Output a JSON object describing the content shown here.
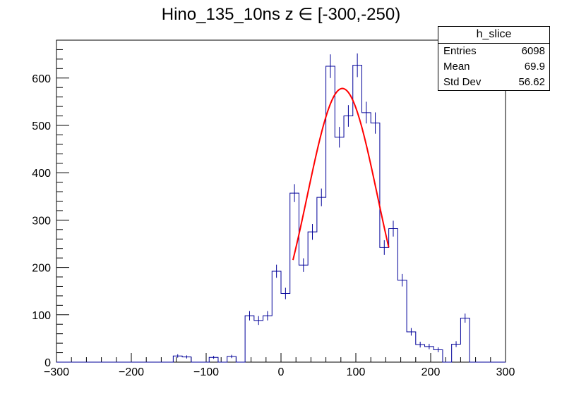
{
  "chart_data": {
    "type": "histogram",
    "title": "Hino_135_10ns z  ∈ [-300,-250)",
    "xlim": [
      -300,
      300
    ],
    "ylim": [
      0,
      680
    ],
    "xticks": [
      -300,
      -200,
      -100,
      0,
      100,
      200,
      300
    ],
    "yticks": [
      0,
      100,
      200,
      300,
      400,
      500,
      600
    ],
    "bin_width": 12,
    "bin_edges_start": -300,
    "values": [
      0,
      0,
      0,
      0,
      0,
      0,
      0,
      0,
      0,
      0,
      0,
      0,
      0,
      13,
      11,
      0,
      0,
      10,
      0,
      12,
      0,
      98,
      88,
      98,
      192,
      145,
      357,
      205,
      275,
      348,
      625,
      475,
      520,
      627,
      527,
      505,
      242,
      282,
      173,
      64,
      37,
      33,
      26,
      0,
      38,
      93,
      0,
      0,
      0,
      0
    ],
    "errors_shown_for_nonzero": true,
    "fit": {
      "type": "gauss",
      "color": "#ff0000",
      "x_range": [
        16,
        144
      ],
      "amplitude": 578,
      "mean": 82,
      "sigma": 47
    },
    "line_color": "#000099",
    "statbox": {
      "name": "h_slice",
      "rows": [
        {
          "label": "Entries",
          "value": "6098"
        },
        {
          "label": "Mean",
          "value": "69.9"
        },
        {
          "label": "Std Dev",
          "value": "56.62"
        }
      ]
    }
  }
}
